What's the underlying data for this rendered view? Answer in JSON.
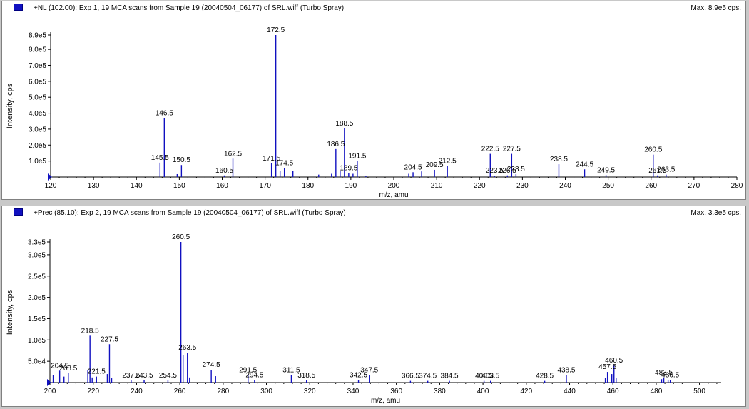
{
  "panes": [
    {
      "header": "+NL (102.00): Exp 1, 19 MCA scans from Sample 19 (20040504_06177) of SRL.wiff (Turbo Spray)",
      "max_label": "Max. 8.9e5 cps.",
      "icon": "spectrum-icon",
      "color": "#1010c0"
    },
    {
      "header": "+Prec (85.10): Exp 2, 19 MCA scans from Sample 19 (20040504_06177) of SRL.wiff (Turbo Spray)",
      "max_label": "Max. 3.3e5 cps.",
      "icon": "spectrum-icon",
      "color": "#1010c0"
    }
  ],
  "chart_data": [
    {
      "type": "bar",
      "title": "+NL (102.00): Exp 1, 19 MCA scans from Sample 19 (20040504_06177) of SRL.wiff (Turbo Spray)",
      "xlabel": "m/z, amu",
      "ylabel": "Intensity, cps",
      "xlim": [
        120,
        280
      ],
      "ylim": [
        0,
        890000
      ],
      "xticks": [
        120,
        130,
        140,
        150,
        160,
        170,
        180,
        190,
        200,
        210,
        220,
        230,
        240,
        250,
        260,
        270,
        280
      ],
      "yticks": [
        {
          "value": 100000,
          "label": "1.0e5"
        },
        {
          "value": 200000,
          "label": "2.0e5"
        },
        {
          "value": 300000,
          "label": "3.0e5"
        },
        {
          "value": 400000,
          "label": "4.0e5"
        },
        {
          "value": 500000,
          "label": "5.0e5"
        },
        {
          "value": 600000,
          "label": "6.0e5"
        },
        {
          "value": 700000,
          "label": "7.0e5"
        },
        {
          "value": 800000,
          "label": "8.0e5"
        },
        {
          "value": 890000,
          "label": "8.9e5"
        }
      ],
      "peaks": [
        {
          "x": 145.5,
          "y": 90000,
          "label": "145.5"
        },
        {
          "x": 146.5,
          "y": 370000,
          "label": "146.5"
        },
        {
          "x": 149.5,
          "y": 18000,
          "label": ""
        },
        {
          "x": 150.5,
          "y": 75000,
          "label": "150.5"
        },
        {
          "x": 160.5,
          "y": 10000,
          "label": "160.5"
        },
        {
          "x": 162.5,
          "y": 115000,
          "label": "162.5"
        },
        {
          "x": 171.5,
          "y": 85000,
          "label": "171.5"
        },
        {
          "x": 172.5,
          "y": 890000,
          "label": "172.5"
        },
        {
          "x": 173.5,
          "y": 40000,
          "label": ""
        },
        {
          "x": 174.5,
          "y": 55000,
          "label": "174.5"
        },
        {
          "x": 176.5,
          "y": 40000,
          "label": ""
        },
        {
          "x": 182.5,
          "y": 15000,
          "label": ""
        },
        {
          "x": 185.5,
          "y": 20000,
          "label": ""
        },
        {
          "x": 186.5,
          "y": 175000,
          "label": "186.5"
        },
        {
          "x": 187.5,
          "y": 40000,
          "label": ""
        },
        {
          "x": 188.5,
          "y": 305000,
          "label": "188.5"
        },
        {
          "x": 189.5,
          "y": 25000,
          "label": "189.5"
        },
        {
          "x": 190.5,
          "y": 20000,
          "label": ""
        },
        {
          "x": 191.5,
          "y": 100000,
          "label": "191.5"
        },
        {
          "x": 193.5,
          "y": 8000,
          "label": ""
        },
        {
          "x": 203.5,
          "y": 20000,
          "label": ""
        },
        {
          "x": 204.5,
          "y": 30000,
          "label": "204.5"
        },
        {
          "x": 206.5,
          "y": 35000,
          "label": ""
        },
        {
          "x": 209.5,
          "y": 45000,
          "label": "209.5"
        },
        {
          "x": 212.5,
          "y": 70000,
          "label": "212.5"
        },
        {
          "x": 222.5,
          "y": 145000,
          "label": "222.5"
        },
        {
          "x": 223.5,
          "y": 8000,
          "label": "223.5"
        },
        {
          "x": 226.5,
          "y": 10000,
          "label": "226.5"
        },
        {
          "x": 227.5,
          "y": 145000,
          "label": "227.5"
        },
        {
          "x": 228.5,
          "y": 18000,
          "label": "228.5"
        },
        {
          "x": 238.5,
          "y": 80000,
          "label": "238.5"
        },
        {
          "x": 244.5,
          "y": 48000,
          "label": "244.5"
        },
        {
          "x": 249.5,
          "y": 12000,
          "label": "249.5"
        },
        {
          "x": 260.5,
          "y": 140000,
          "label": "260.5"
        },
        {
          "x": 261.5,
          "y": 10000,
          "label": "261.5"
        },
        {
          "x": 263.5,
          "y": 15000,
          "label": "263.5"
        }
      ]
    },
    {
      "type": "bar",
      "title": "+Prec (85.10): Exp 2, 19 MCA scans from Sample 19 (20040504_06177) of SRL.wiff (Turbo Spray)",
      "xlabel": "m/z, amu",
      "ylabel": "Intensity, cps",
      "xlim": [
        200,
        510
      ],
      "ylim": [
        0,
        330000
      ],
      "xticks": [
        200,
        220,
        240,
        260,
        280,
        300,
        320,
        340,
        360,
        380,
        400,
        420,
        440,
        460,
        480,
        500
      ],
      "yticks": [
        {
          "value": 50000,
          "label": "5.0e4"
        },
        {
          "value": 100000,
          "label": "1.0e5"
        },
        {
          "value": 150000,
          "label": "1.5e5"
        },
        {
          "value": 200000,
          "label": "2.0e5"
        },
        {
          "value": 250000,
          "label": "2.5e5"
        },
        {
          "value": 300000,
          "label": "3.0e5"
        },
        {
          "value": 330000,
          "label": "3.3e5"
        }
      ],
      "peaks": [
        {
          "x": 201.5,
          "y": 18000,
          "label": ""
        },
        {
          "x": 204.5,
          "y": 28000,
          "label": "204.5"
        },
        {
          "x": 206.5,
          "y": 14000,
          "label": ""
        },
        {
          "x": 208.5,
          "y": 22000,
          "label": "208.5"
        },
        {
          "x": 217.5,
          "y": 30000,
          "label": ""
        },
        {
          "x": 218.5,
          "y": 110000,
          "label": "218.5"
        },
        {
          "x": 219.5,
          "y": 12000,
          "label": ""
        },
        {
          "x": 221.5,
          "y": 14000,
          "label": "221.5"
        },
        {
          "x": 226.5,
          "y": 20000,
          "label": ""
        },
        {
          "x": 227.5,
          "y": 90000,
          "label": "227.5"
        },
        {
          "x": 228.5,
          "y": 10000,
          "label": ""
        },
        {
          "x": 237.5,
          "y": 5000,
          "label": "237.5"
        },
        {
          "x": 243.5,
          "y": 5000,
          "label": "243.5"
        },
        {
          "x": 254.5,
          "y": 5000,
          "label": "254.5"
        },
        {
          "x": 260.5,
          "y": 330000,
          "label": "260.5"
        },
        {
          "x": 261.5,
          "y": 65000,
          "label": ""
        },
        {
          "x": 263.5,
          "y": 70000,
          "label": "263.5"
        },
        {
          "x": 264.5,
          "y": 12000,
          "label": ""
        },
        {
          "x": 274.5,
          "y": 30000,
          "label": "274.5"
        },
        {
          "x": 276.5,
          "y": 15000,
          "label": ""
        },
        {
          "x": 291.5,
          "y": 18000,
          "label": "291.5"
        },
        {
          "x": 294.5,
          "y": 6000,
          "label": "294.5"
        },
        {
          "x": 311.5,
          "y": 18000,
          "label": "311.5"
        },
        {
          "x": 318.5,
          "y": 5000,
          "label": "318.5"
        },
        {
          "x": 342.5,
          "y": 6000,
          "label": "342.5"
        },
        {
          "x": 347.5,
          "y": 18000,
          "label": "347.5"
        },
        {
          "x": 366.5,
          "y": 4000,
          "label": "366.5"
        },
        {
          "x": 374.5,
          "y": 4000,
          "label": "374.5"
        },
        {
          "x": 384.5,
          "y": 4000,
          "label": "384.5"
        },
        {
          "x": 400.5,
          "y": 4000,
          "label": "400.5"
        },
        {
          "x": 403.5,
          "y": 4000,
          "label": "403.5"
        },
        {
          "x": 428.5,
          "y": 4000,
          "label": "428.5"
        },
        {
          "x": 438.5,
          "y": 18000,
          "label": "438.5"
        },
        {
          "x": 456.5,
          "y": 10000,
          "label": ""
        },
        {
          "x": 457.5,
          "y": 25000,
          "label": "457.5"
        },
        {
          "x": 459.5,
          "y": 20000,
          "label": ""
        },
        {
          "x": 460.5,
          "y": 40000,
          "label": "460.5"
        },
        {
          "x": 461.5,
          "y": 10000,
          "label": ""
        },
        {
          "x": 482.5,
          "y": 8000,
          "label": ""
        },
        {
          "x": 483.5,
          "y": 12000,
          "label": "483.5"
        },
        {
          "x": 485.5,
          "y": 6000,
          "label": ""
        },
        {
          "x": 486.5,
          "y": 6000,
          "label": "486.5"
        }
      ]
    }
  ]
}
